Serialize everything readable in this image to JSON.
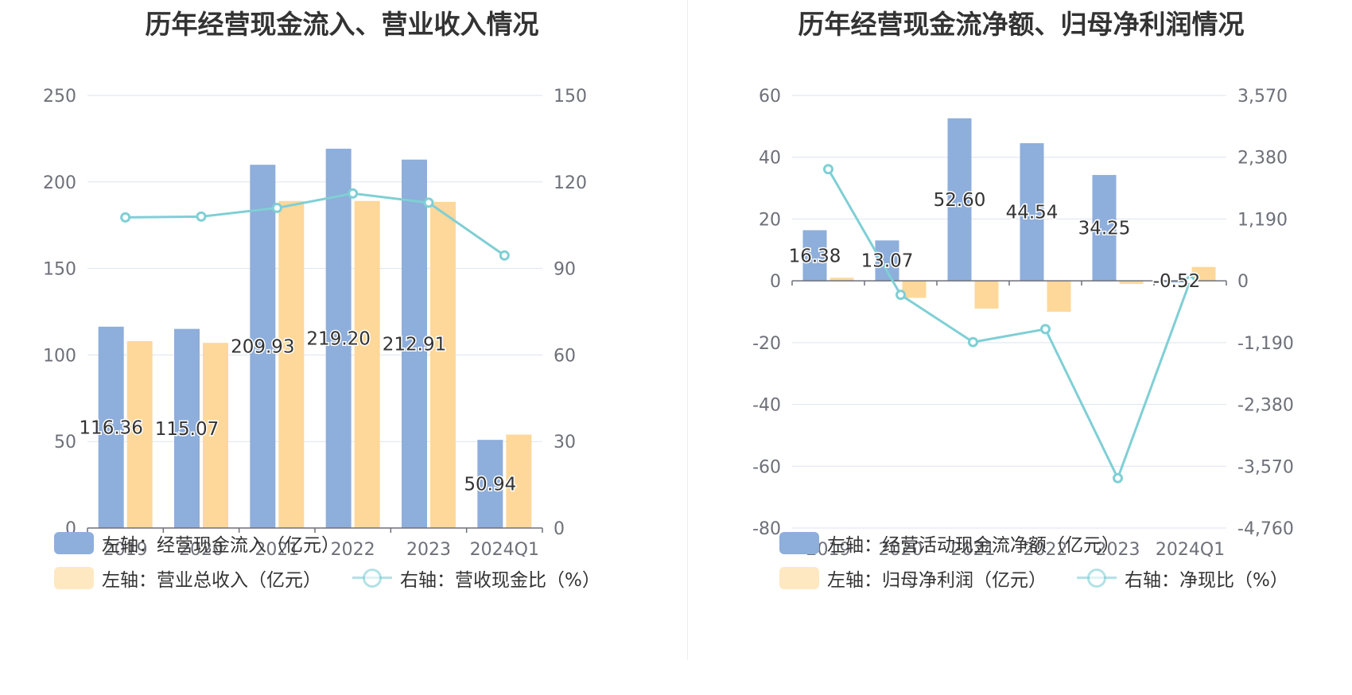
{
  "colors": {
    "bar_primary": "#8eaedb",
    "bar_secondary": "#fed89a",
    "line": "#7fcfd5",
    "grid": "#dde3ef",
    "axis_text": "#6e7079",
    "label_text": "#333333"
  },
  "left": {
    "title": "历年经营现金流入、营业收入情况",
    "legend": {
      "bar1": "左轴：经营现金流入（亿元）",
      "bar2": "左轴：营业总收入（亿元）",
      "line": "右轴：营收现金比（%）"
    }
  },
  "right": {
    "title": "历年经营现金流净额、归母净利润情况",
    "legend": {
      "bar1": "左轴：经营活动现金流净额（亿元）",
      "bar2": "左轴：归母净利润（亿元）",
      "line": "右轴：净现比（%）"
    }
  },
  "chart_data": [
    {
      "type": "bar",
      "title": "历年经营现金流入、营业收入情况",
      "categories": [
        "2019",
        "2020",
        "2021",
        "2022",
        "2023",
        "2024Q1"
      ],
      "ylim": [
        0,
        250
      ],
      "y_ticks": [
        "250",
        "200",
        "150",
        "100",
        "50",
        "0"
      ],
      "ylim_right": [
        0,
        150
      ],
      "y_ticks_right": [
        "150",
        "120",
        "90",
        "60",
        "30",
        "0"
      ],
      "grid": true,
      "legend_position": "bottom-left",
      "series": [
        {
          "name": "左轴：经营现金流入（亿元）",
          "type": "bar",
          "axis": "left",
          "values": [
            116.36,
            115.07,
            209.93,
            219.2,
            212.91,
            50.94
          ],
          "labels": [
            "116.36",
            "115.07",
            "209.93",
            "219.20",
            "212.91",
            "50.94"
          ]
        },
        {
          "name": "左轴：营业总收入（亿元）",
          "type": "bar",
          "axis": "left",
          "values": [
            108,
            107,
            189,
            189,
            188.5,
            54
          ]
        },
        {
          "name": "右轴：营收现金比（%）",
          "type": "line",
          "axis": "right",
          "values": [
            107.7,
            108.0,
            111.0,
            116.0,
            112.8,
            94.5
          ]
        }
      ]
    },
    {
      "type": "bar",
      "title": "历年经营现金流净额、归母净利润情况",
      "categories": [
        "2019",
        "2020",
        "2021",
        "2022",
        "2023",
        "2024Q1"
      ],
      "ylim": [
        -80,
        60
      ],
      "y_ticks": [
        "60",
        "40",
        "20",
        "0",
        "-20",
        "-40",
        "-60",
        "-80"
      ],
      "ylim_right": [
        -4760,
        3570
      ],
      "y_ticks_right": [
        "3,570",
        "2,380",
        "1,190",
        "0",
        "-1,190",
        "-2,380",
        "-3,570",
        "-4,760"
      ],
      "grid": true,
      "legend_position": "bottom-left",
      "series": [
        {
          "name": "左轴：经营活动现金流净额（亿元）",
          "type": "bar",
          "axis": "left",
          "values": [
            16.38,
            13.07,
            52.6,
            44.54,
            34.25,
            -0.52
          ],
          "labels": [
            "16.38",
            "13.07",
            "52.60",
            "44.54",
            "34.25",
            "-0.52"
          ]
        },
        {
          "name": "左轴：归母净利润（亿元）",
          "type": "bar",
          "axis": "left",
          "values": [
            1.0,
            -5.5,
            -9.0,
            -10.0,
            -1.0,
            4.5
          ]
        },
        {
          "name": "右轴：净现比（%）",
          "type": "line",
          "axis": "right",
          "values": [
            2150,
            -270,
            -1180,
            -930,
            -3800,
            0
          ]
        }
      ]
    }
  ]
}
